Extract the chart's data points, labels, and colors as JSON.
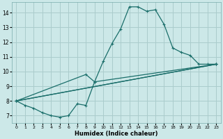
{
  "xlabel": "Humidex (Indice chaleur)",
  "bg_color": "#cce8e8",
  "grid_color": "#aacccc",
  "line_color": "#1a6e6a",
  "xlim": [
    -0.5,
    23.5
  ],
  "ylim": [
    6.5,
    14.7
  ],
  "xticks": [
    0,
    1,
    2,
    3,
    4,
    5,
    6,
    7,
    8,
    9,
    10,
    11,
    12,
    13,
    14,
    15,
    16,
    17,
    18,
    19,
    20,
    21,
    22,
    23
  ],
  "yticks": [
    7,
    8,
    9,
    10,
    11,
    12,
    13,
    14
  ],
  "line1_x": [
    0,
    1,
    2,
    3,
    4,
    5,
    6,
    7,
    8,
    9,
    10,
    11,
    12,
    13,
    14,
    15,
    16,
    17,
    18,
    19,
    20,
    21,
    22,
    23
  ],
  "line1_y": [
    8.0,
    7.7,
    7.5,
    7.2,
    7.0,
    6.9,
    7.0,
    7.8,
    7.7,
    9.3,
    10.7,
    11.9,
    12.9,
    14.4,
    14.4,
    14.1,
    14.2,
    13.2,
    11.6,
    11.3,
    11.1,
    10.5,
    10.5,
    10.5
  ],
  "line2_x": [
    0,
    8,
    9,
    23
  ],
  "line2_y": [
    8.0,
    9.8,
    9.3,
    10.5
  ],
  "line3_x": [
    0,
    23
  ],
  "line3_y": [
    8.0,
    10.5
  ],
  "line4_x": [
    0,
    23
  ],
  "line4_y": [
    8.0,
    10.5
  ]
}
